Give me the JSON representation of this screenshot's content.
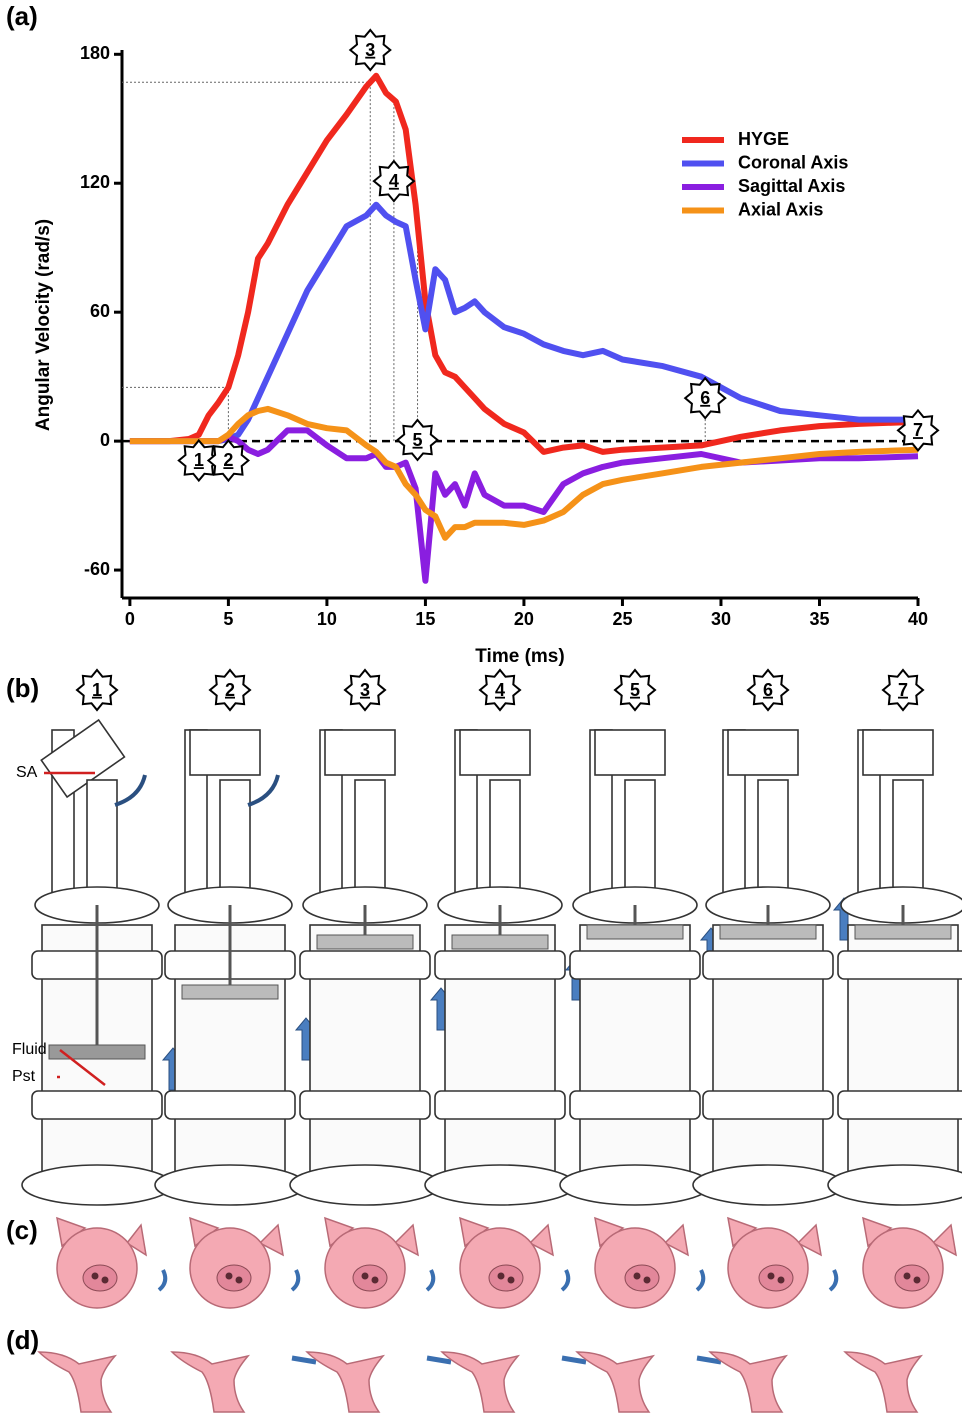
{
  "chart_data": {
    "type": "line",
    "panel_label": "(a)",
    "x_label": "Time (ms)",
    "y_label": "Angular Velocity (rad/s)",
    "x": [
      0,
      1,
      2,
      3,
      3.5,
      4,
      4.5,
      5,
      5.5,
      6,
      6.5,
      7,
      8,
      9,
      10,
      11,
      12,
      12.5,
      13,
      13.5,
      14,
      14.5,
      15,
      15.5,
      16,
      16.5,
      17,
      17.5,
      18,
      19,
      20,
      21,
      22,
      23,
      24,
      25,
      27,
      29,
      31,
      33,
      35,
      37,
      40
    ],
    "series": [
      {
        "name": "HYGE",
        "color": "#f0281e",
        "values": [
          0,
          0,
          0,
          1,
          3,
          12,
          18,
          25,
          40,
          60,
          85,
          92,
          110,
          125,
          140,
          152,
          165,
          170,
          162,
          158,
          145,
          110,
          65,
          40,
          32,
          30,
          25,
          20,
          15,
          8,
          4,
          -5,
          -3,
          -2,
          -5,
          -4,
          -3,
          -2,
          2,
          5,
          7,
          8,
          9
        ]
      },
      {
        "name": "Coronal Axis",
        "color": "#5050f0",
        "values": [
          0,
          0,
          0,
          0,
          0,
          0,
          0,
          1,
          3,
          10,
          20,
          30,
          50,
          70,
          85,
          100,
          105,
          110,
          105,
          102,
          100,
          75,
          52,
          80,
          75,
          60,
          62,
          65,
          60,
          53,
          50,
          45,
          42,
          40,
          42,
          38,
          35,
          30,
          20,
          14,
          12,
          10,
          10
        ]
      },
      {
        "name": "Sagittal Axis",
        "color": "#8a1ee0",
        "values": [
          0,
          0,
          0,
          0,
          0,
          0,
          0,
          2,
          0,
          -4,
          -6,
          -4,
          5,
          5,
          -2,
          -8,
          -8,
          -6,
          -12,
          -12,
          -10,
          -22,
          -65,
          -15,
          -25,
          -20,
          -30,
          -15,
          -25,
          -30,
          -30,
          -33,
          -20,
          -15,
          -12,
          -10,
          -8,
          -6,
          -10,
          -9,
          -8,
          -8,
          -7
        ]
      },
      {
        "name": "Axial Axis",
        "color": "#f59218",
        "values": [
          0,
          0,
          0,
          0,
          0,
          0,
          0,
          3,
          8,
          12,
          14,
          15,
          12,
          8,
          6,
          5,
          -2,
          -5,
          -10,
          -12,
          -20,
          -25,
          -32,
          -35,
          -45,
          -40,
          -40,
          -38,
          -38,
          -38,
          -39,
          -37,
          -33,
          -25,
          -20,
          -18,
          -15,
          -12,
          -10,
          -8,
          -6,
          -5,
          -4
        ]
      }
    ],
    "xlim": [
      -0.4,
      40
    ],
    "ylim": [
      -73,
      182
    ],
    "xticks": [
      0,
      5,
      10,
      15,
      20,
      25,
      30,
      35,
      40
    ],
    "yticks": [
      -60,
      0,
      60,
      120,
      180
    ],
    "events": [
      {
        "label": "1",
        "x": 3.5,
        "y": -9
      },
      {
        "label": "2",
        "x": 5,
        "y": -9
      },
      {
        "label": "3",
        "x": 12.2,
        "y": 182
      },
      {
        "label": "4",
        "x": 13.4,
        "y": 121
      },
      {
        "label": "5",
        "x": 14.6,
        "y": 0.5
      },
      {
        "label": "6",
        "x": 29.2,
        "y": 20
      },
      {
        "label": "7",
        "x": 40,
        "y": 5
      }
    ]
  },
  "panel_b": {
    "label": "(b)",
    "steps": [
      "1",
      "2",
      "3",
      "4",
      "5",
      "6",
      "7"
    ],
    "parts": [
      "SA",
      "Fluid",
      "Pst"
    ]
  },
  "panel_c": {
    "label": "(c)"
  },
  "panel_d": {
    "label": "(d)"
  }
}
